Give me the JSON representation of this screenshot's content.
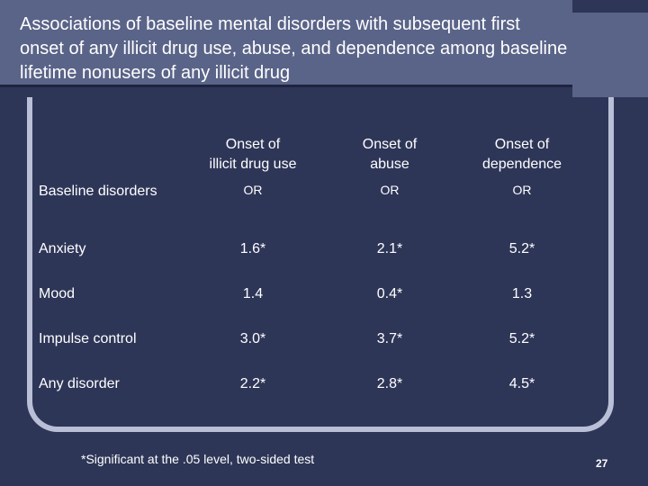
{
  "slide": {
    "title": "Associations of baseline mental disorders with subsequent first onset of any illicit drug use, abuse, and dependence among baseline lifetime nonusers of any illicit drug",
    "footnote": "*Significant at the .05 level, two-sided test",
    "page_number": "27"
  },
  "table": {
    "row_header": "Baseline disorders",
    "columns": [
      {
        "label_line1": "Onset of",
        "label_line2": "illicit drug use",
        "stat": "OR"
      },
      {
        "label_line1": "Onset of",
        "label_line2": "abuse",
        "stat": "OR"
      },
      {
        "label_line1": "Onset of",
        "label_line2": "dependence",
        "stat": "OR"
      }
    ],
    "rows": [
      {
        "label": "Anxiety",
        "values": [
          "1.6*",
          "2.1*",
          "5.2*"
        ]
      },
      {
        "label": "Mood",
        "values": [
          "1.4",
          "0.4*",
          "1.3"
        ]
      },
      {
        "label": "Impulse control",
        "values": [
          "3.0*",
          "3.7*",
          "5.2*"
        ]
      },
      {
        "label": "Any disorder",
        "values": [
          "2.2*",
          "2.8*",
          "4.5*"
        ]
      }
    ]
  }
}
